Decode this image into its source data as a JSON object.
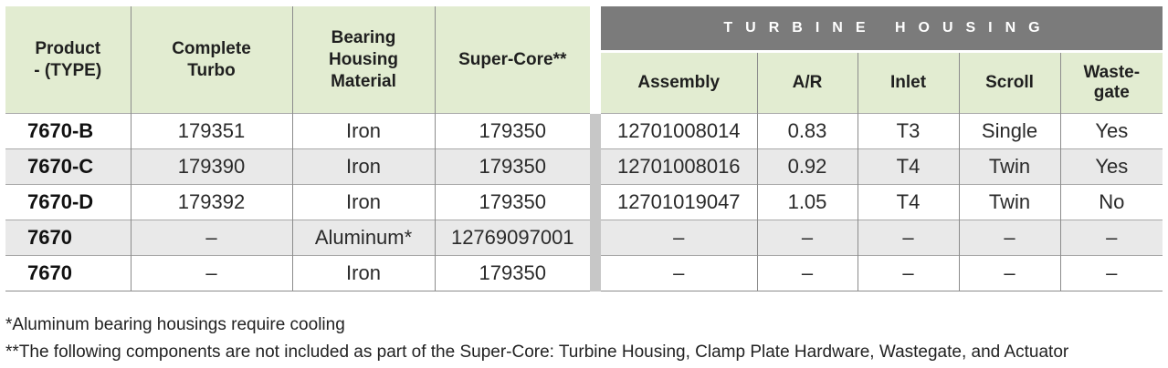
{
  "headers": {
    "product": "Product\n- (TYPE)",
    "complete_turbo": "Complete\nTurbo",
    "bearing_housing": "Bearing\nHousing\nMaterial",
    "super_core": "Super-Core**",
    "turbine_group": "TURBINE HOUSING",
    "assembly": "Assembly",
    "ar": "A/R",
    "inlet": "Inlet",
    "scroll": "Scroll",
    "wastegate": "Waste-\ngate"
  },
  "rows": [
    {
      "product": "7670-B",
      "complete_turbo": "179351",
      "bearing": "Iron",
      "super_core": "179350",
      "assembly": "12701008014",
      "ar": "0.83",
      "inlet": "T3",
      "scroll": "Single",
      "wastegate": "Yes"
    },
    {
      "product": "7670-C",
      "complete_turbo": "179390",
      "bearing": "Iron",
      "super_core": "179350",
      "assembly": "12701008016",
      "ar": "0.92",
      "inlet": "T4",
      "scroll": "Twin",
      "wastegate": "Yes"
    },
    {
      "product": "7670-D",
      "complete_turbo": "179392",
      "bearing": "Iron",
      "super_core": "179350",
      "assembly": "12701019047",
      "ar": "1.05",
      "inlet": "T4",
      "scroll": "Twin",
      "wastegate": "No"
    },
    {
      "product": "7670",
      "complete_turbo": "–",
      "bearing": "Aluminum*",
      "super_core": "12769097001",
      "assembly": "–",
      "ar": "–",
      "inlet": "–",
      "scroll": "–",
      "wastegate": "–"
    },
    {
      "product": "7670",
      "complete_turbo": "–",
      "bearing": "Iron",
      "super_core": "179350",
      "assembly": "–",
      "ar": "–",
      "inlet": "–",
      "scroll": "–",
      "wastegate": "–"
    }
  ],
  "footnotes": [
    "*Aluminum bearing housings require cooling",
    "**The following components are not included as part of the Super-Core: Turbine Housing, Clamp Plate Hardware, Wastegate, and Actuator"
  ]
}
